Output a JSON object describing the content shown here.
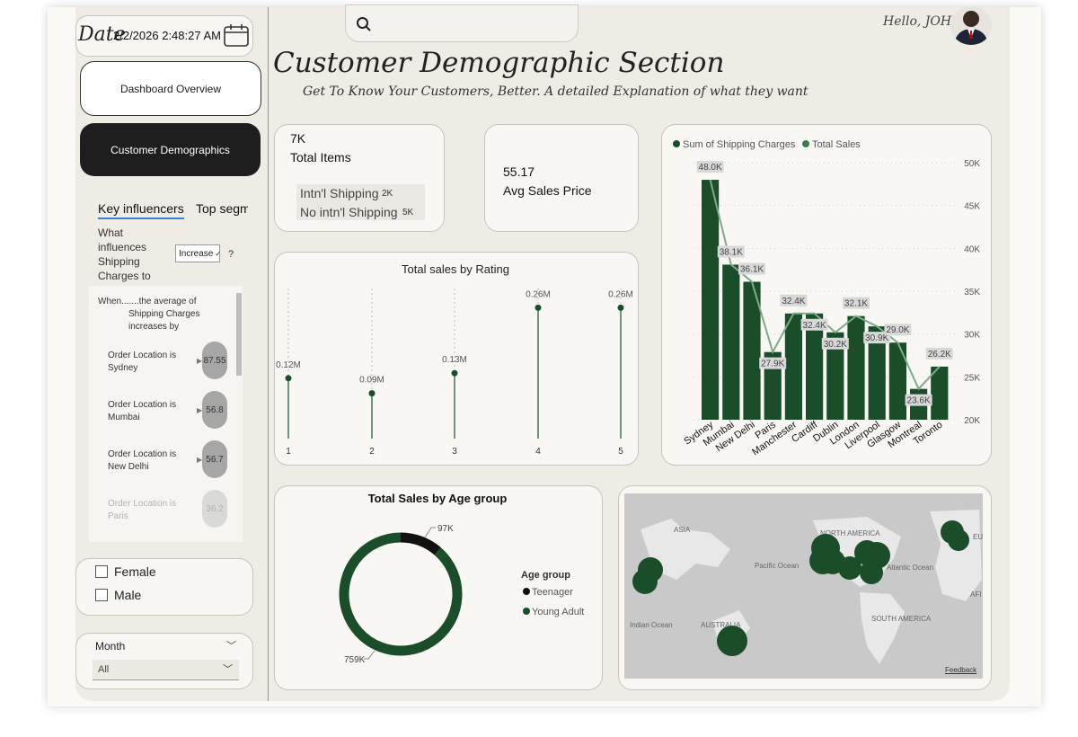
{
  "sidebar": {
    "date_label": "Date",
    "datetime": "2/2/2026 2:48:27 AM",
    "nav": [
      {
        "label": "Dashboard Overview",
        "active": false
      },
      {
        "label": "Customer Demographics",
        "active": true
      }
    ],
    "key_influencers": {
      "tab_active": "Key influencers",
      "tab_other": "Top segm",
      "question": "What influences Shipping Charges to",
      "dropdown_value": "Increase",
      "help": "?",
      "when_text": "When.......the average of",
      "when_text2": "Shipping Charges",
      "when_text3": "increases by",
      "items": [
        {
          "line1": "Order Location is",
          "line2": "Sydney",
          "value": "87.55"
        },
        {
          "line1": "Order Location is",
          "line2": "Mumbai",
          "value": "56.8"
        },
        {
          "line1": "Order Location is",
          "line2": "New Delhi",
          "value": "56.7"
        },
        {
          "line1": "Order Location is",
          "line2": "Paris",
          "value": "36.2"
        }
      ]
    },
    "gender": {
      "options": [
        "Female",
        "Male"
      ]
    },
    "month": {
      "label": "Month",
      "value": "All"
    }
  },
  "header": {
    "search_placeholder": "",
    "greeting": "Hello, JOHN",
    "title": "Customer Demographic Section",
    "subtitle": "Get To Know Your Customers, Better. A detailed Explanation of what they want"
  },
  "kpis": {
    "total_items_value": "7K",
    "total_items_label": "Total Items",
    "intl_label": "Intn'l Shipping",
    "intl_value": "2K",
    "no_intl_label": "No intn'l Shipping",
    "no_intl_value": "5K",
    "avg_value": "55.17",
    "avg_label": "Avg Sales Price"
  },
  "map": {
    "labels": [
      "ASIA",
      "NORTH AMERICA",
      "Pacific Ocean",
      "Atlantic Ocean",
      "Indian Ocean",
      "AUSTRALIA",
      "SOUTH AMERICA",
      "EUR",
      "AFI"
    ],
    "feedback": "Feedback"
  },
  "colors": {
    "dark_green": "#1c4d2b",
    "accent_dark": "#1a1a1a",
    "light_green": "#7ea98a"
  },
  "chart_data": [
    {
      "type": "line",
      "title": "Total sales by Rating",
      "categories": [
        "1",
        "2",
        "3",
        "4",
        "5"
      ],
      "values": [
        0.12,
        0.09,
        0.13,
        0.26,
        0.26
      ],
      "labels": [
        "0.12M",
        "0.09M",
        "0.13M",
        "0.26M",
        "0.26M"
      ],
      "ylim": [
        0,
        0.3
      ]
    },
    {
      "type": "bar",
      "legend": [
        "Sum of Shipping Charges",
        "Total Sales"
      ],
      "legend_position": "top-left",
      "categories": [
        "Sydney",
        "Mumbai",
        "New Delhi",
        "Paris",
        "Manchester",
        "Cardiff",
        "Dublin",
        "London",
        "Liverpool",
        "Glasgow",
        "Montreal",
        "Toronto"
      ],
      "series": [
        {
          "name": "Sum of Shipping Charges",
          "type": "bar",
          "values": [
            48.0,
            38.1,
            36.1,
            27.9,
            32.4,
            32.4,
            30.2,
            32.1,
            30.9,
            29.0,
            23.6,
            26.2
          ]
        },
        {
          "name": "Total Sales",
          "type": "line",
          "values": [
            48.0,
            38.1,
            36.1,
            27.9,
            32.4,
            32.4,
            30.2,
            32.1,
            30.9,
            29.0,
            23.6,
            26.2
          ]
        }
      ],
      "labels": [
        "48.0K",
        "38.1K",
        "36.1K",
        "27.9K",
        "32.4K",
        "32.4K",
        "30.2K",
        "32.1K",
        "30.9K",
        "29.0K",
        "23.6K",
        "26.2K"
      ],
      "y_ticks": [
        "50K",
        "45K",
        "40K",
        "35K",
        "30K",
        "25K",
        "20K"
      ],
      "ylim": [
        20,
        50
      ]
    },
    {
      "type": "pie",
      "title": "Total Sales by Age group",
      "legend_title": "Age group",
      "categories": [
        "Teenager",
        "Young Adult"
      ],
      "values": [
        97,
        759
      ],
      "labels": [
        "97K",
        "759K"
      ],
      "colors": [
        "#111111",
        "#1c4d2b"
      ]
    }
  ]
}
